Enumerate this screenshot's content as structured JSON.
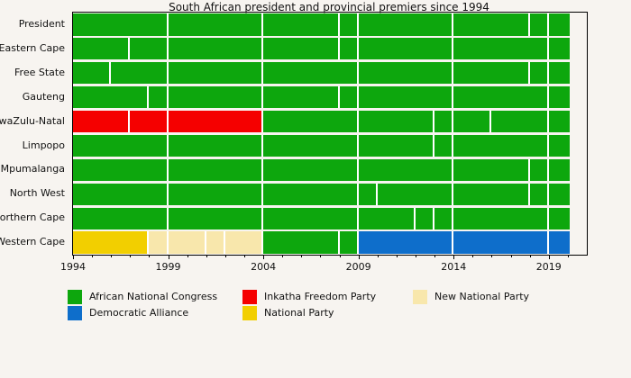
{
  "chart_data": {
    "type": "bar",
    "variant": "horizontal-timeline",
    "title": "South African president and provincial premiers since 1994",
    "x_axis": {
      "min": 1994,
      "max": 2021,
      "major_ticks": [
        1994,
        1999,
        2004,
        2009,
        2014,
        2019
      ],
      "minor_tick_interval": 1,
      "grid": false
    },
    "timeline_start": 1994,
    "timeline_end": 2020.1,
    "parties": {
      "ANC": {
        "label": "African National Congress",
        "color": "#0da70d"
      },
      "DA": {
        "label": "Democratic Alliance",
        "color": "#0e6ecb"
      },
      "IFP": {
        "label": "Inkatha Freedom Party",
        "color": "#f50000"
      },
      "NP": {
        "label": "National Party",
        "color": "#f2cf00"
      },
      "NNP": {
        "label": "New National Party",
        "color": "#f8e7ac"
      }
    },
    "legend": {
      "position": "bottom",
      "columns": [
        [
          "ANC",
          "DA"
        ],
        [
          "IFP",
          "NP"
        ],
        [
          "NNP"
        ]
      ]
    },
    "rows": [
      {
        "label": "President",
        "segments": [
          [
            1994,
            1999,
            "ANC"
          ],
          [
            1999,
            2004,
            "ANC"
          ],
          [
            2004,
            2008,
            "ANC"
          ],
          [
            2008,
            2009,
            "ANC"
          ],
          [
            2009,
            2014,
            "ANC"
          ],
          [
            2014,
            2018,
            "ANC"
          ],
          [
            2018,
            2019,
            "ANC"
          ],
          [
            2019,
            2020.1,
            "ANC"
          ]
        ]
      },
      {
        "label": "Eastern Cape",
        "segments": [
          [
            1994,
            1997,
            "ANC"
          ],
          [
            1997,
            1999,
            "ANC"
          ],
          [
            1999,
            2004,
            "ANC"
          ],
          [
            2004,
            2008,
            "ANC"
          ],
          [
            2008,
            2009,
            "ANC"
          ],
          [
            2009,
            2014,
            "ANC"
          ],
          [
            2014,
            2019,
            "ANC"
          ],
          [
            2019,
            2020.1,
            "ANC"
          ]
        ]
      },
      {
        "label": "Free State",
        "segments": [
          [
            1994,
            1996,
            "ANC"
          ],
          [
            1996,
            1999,
            "ANC"
          ],
          [
            1999,
            2004,
            "ANC"
          ],
          [
            2004,
            2009,
            "ANC"
          ],
          [
            2009,
            2014,
            "ANC"
          ],
          [
            2014,
            2018,
            "ANC"
          ],
          [
            2018,
            2019,
            "ANC"
          ],
          [
            2019,
            2020.1,
            "ANC"
          ]
        ]
      },
      {
        "label": "Gauteng",
        "segments": [
          [
            1994,
            1998,
            "ANC"
          ],
          [
            1998,
            1999,
            "ANC"
          ],
          [
            1999,
            2004,
            "ANC"
          ],
          [
            2004,
            2008,
            "ANC"
          ],
          [
            2008,
            2009,
            "ANC"
          ],
          [
            2009,
            2014,
            "ANC"
          ],
          [
            2014,
            2019,
            "ANC"
          ],
          [
            2019,
            2020.1,
            "ANC"
          ]
        ]
      },
      {
        "label": "KwaZulu-Natal",
        "segments": [
          [
            1994,
            1997,
            "IFP"
          ],
          [
            1997,
            1999,
            "IFP"
          ],
          [
            1999,
            2004,
            "IFP"
          ],
          [
            2004,
            2009,
            "ANC"
          ],
          [
            2009,
            2013,
            "ANC"
          ],
          [
            2013,
            2014,
            "ANC"
          ],
          [
            2014,
            2016,
            "ANC"
          ],
          [
            2016,
            2019,
            "ANC"
          ],
          [
            2019,
            2020.1,
            "ANC"
          ]
        ]
      },
      {
        "label": "Limpopo",
        "segments": [
          [
            1994,
            1999,
            "ANC"
          ],
          [
            1999,
            2004,
            "ANC"
          ],
          [
            2004,
            2009,
            "ANC"
          ],
          [
            2009,
            2013,
            "ANC"
          ],
          [
            2013,
            2014,
            "ANC"
          ],
          [
            2014,
            2019,
            "ANC"
          ],
          [
            2019,
            2020.1,
            "ANC"
          ]
        ]
      },
      {
        "label": "Mpumalanga",
        "segments": [
          [
            1994,
            1999,
            "ANC"
          ],
          [
            1999,
            2004,
            "ANC"
          ],
          [
            2004,
            2009,
            "ANC"
          ],
          [
            2009,
            2014,
            "ANC"
          ],
          [
            2014,
            2018,
            "ANC"
          ],
          [
            2018,
            2019,
            "ANC"
          ],
          [
            2019,
            2020.1,
            "ANC"
          ]
        ]
      },
      {
        "label": "North West",
        "segments": [
          [
            1994,
            1999,
            "ANC"
          ],
          [
            1999,
            2004,
            "ANC"
          ],
          [
            2004,
            2009,
            "ANC"
          ],
          [
            2009,
            2010,
            "ANC"
          ],
          [
            2010,
            2014,
            "ANC"
          ],
          [
            2014,
            2018,
            "ANC"
          ],
          [
            2018,
            2019,
            "ANC"
          ],
          [
            2019,
            2020.1,
            "ANC"
          ]
        ]
      },
      {
        "label": "Northern Cape",
        "segments": [
          [
            1994,
            1999,
            "ANC"
          ],
          [
            1999,
            2004,
            "ANC"
          ],
          [
            2004,
            2009,
            "ANC"
          ],
          [
            2009,
            2012,
            "ANC"
          ],
          [
            2012,
            2013,
            "ANC"
          ],
          [
            2013,
            2014,
            "ANC"
          ],
          [
            2014,
            2019,
            "ANC"
          ],
          [
            2019,
            2020.1,
            "ANC"
          ]
        ]
      },
      {
        "label": "Western Cape",
        "segments": [
          [
            1994,
            1998,
            "NP"
          ],
          [
            1998,
            1999,
            "NNP"
          ],
          [
            1999,
            2001,
            "NNP"
          ],
          [
            2001,
            2002,
            "NNP"
          ],
          [
            2002,
            2004,
            "NNP"
          ],
          [
            2004,
            2008,
            "ANC"
          ],
          [
            2008,
            2009,
            "ANC"
          ],
          [
            2009,
            2014,
            "DA"
          ],
          [
            2014,
            2019,
            "DA"
          ],
          [
            2019,
            2020.1,
            "DA"
          ]
        ]
      }
    ]
  },
  "colors": {
    "background": "#f7f4f0",
    "axis": "#000000",
    "separator": "#ffffff",
    "text": "#1a1a1a"
  }
}
